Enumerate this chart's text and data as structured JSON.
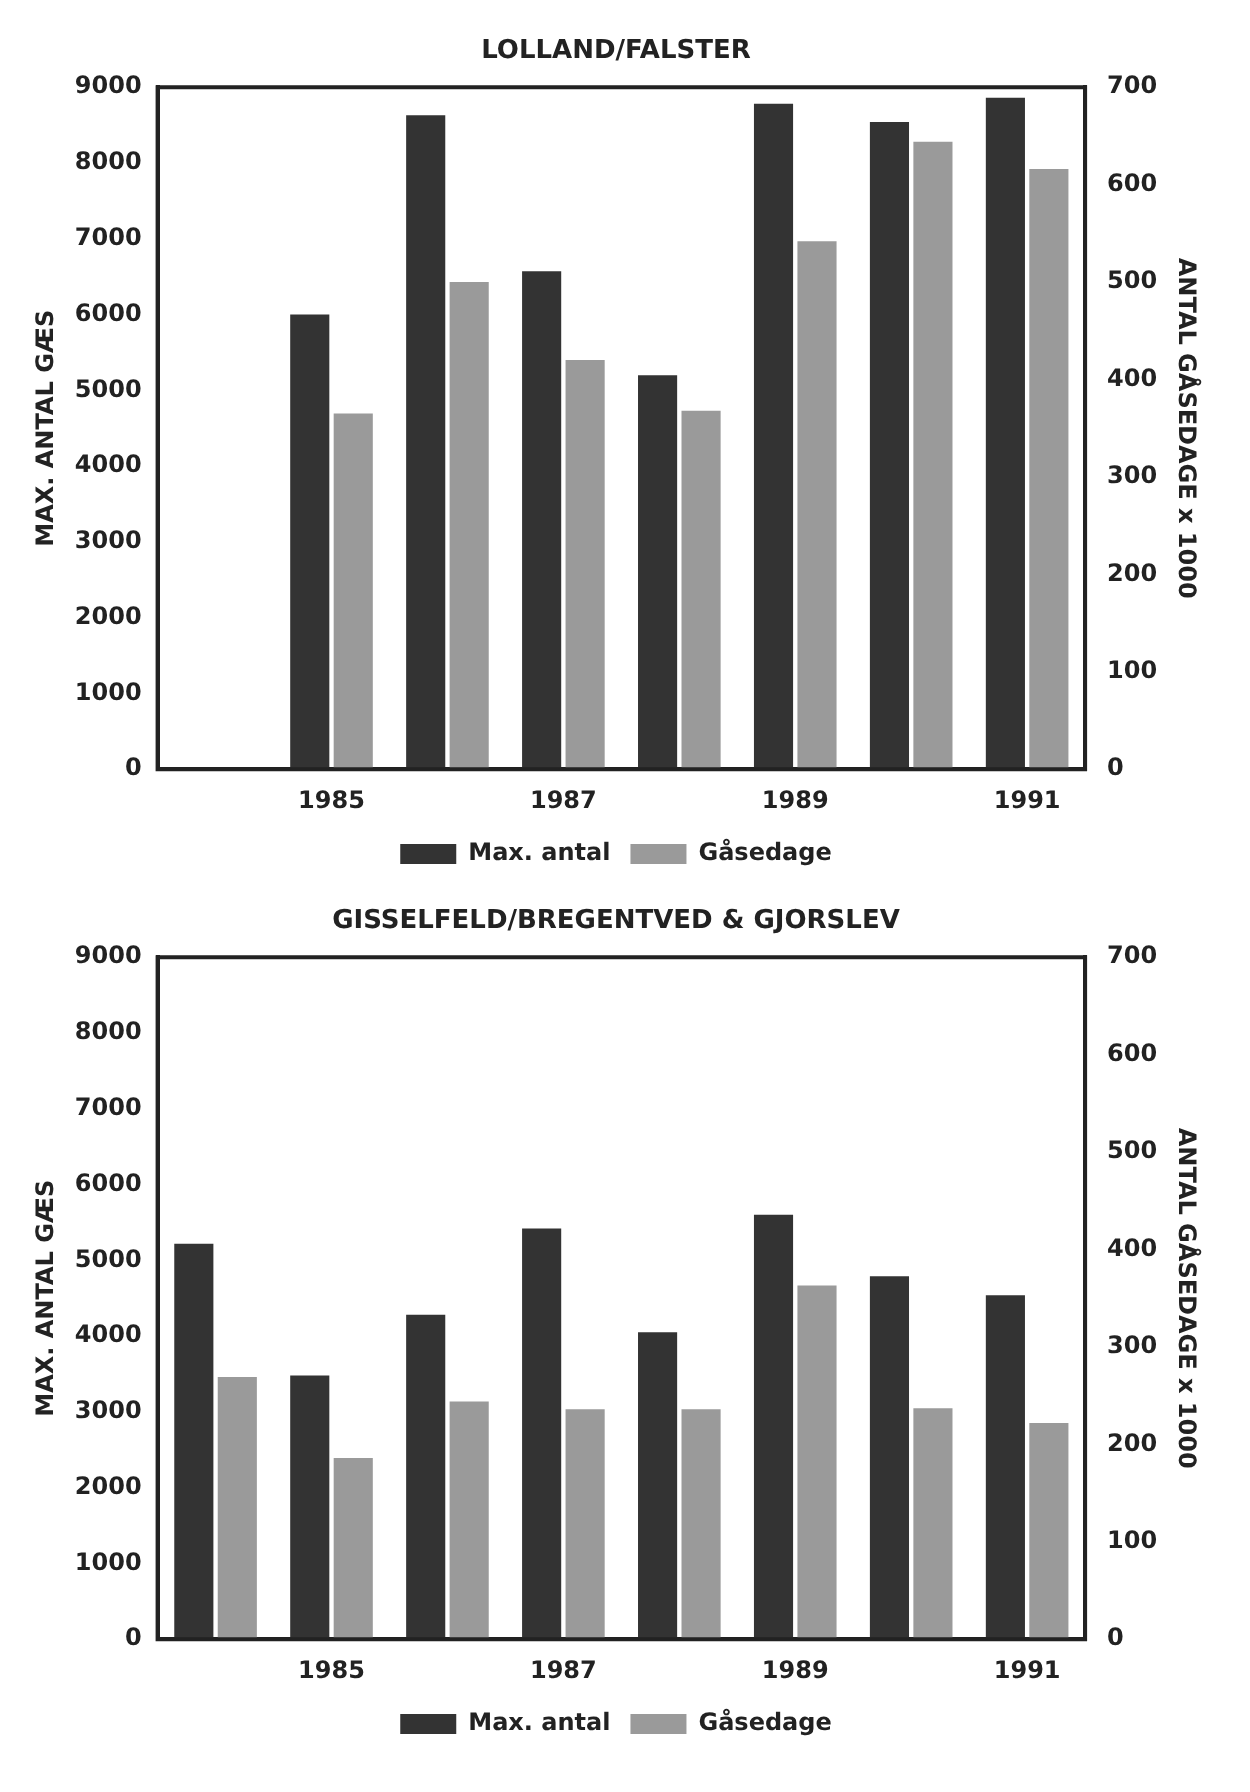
{
  "chart_data": [
    {
      "type": "bar",
      "title": "LOLLAND/FALSTER",
      "ylabel": "MAX. ANTAL GÆS",
      "y2label": "ANTAL GÅSEDAGE x 1000",
      "categories": [
        null,
        "1985",
        null,
        "1987",
        null,
        "1989",
        null,
        "1991"
      ],
      "series": [
        {
          "name": "Max. antal",
          "color": "#333333",
          "values": [
            null,
            6000,
            8630,
            6570,
            5200,
            8780,
            8540,
            8860
          ]
        },
        {
          "name": "Gåsedage",
          "color": "#9a9a9a",
          "axis": "y2",
          "values": [
            null,
            365,
            500,
            420,
            368,
            542,
            644,
            616
          ]
        }
      ],
      "ylim": [
        0,
        9000
      ],
      "yticks": [
        0,
        1000,
        2000,
        3000,
        4000,
        5000,
        6000,
        7000,
        8000,
        9000
      ],
      "y2lim": [
        0,
        700
      ],
      "y2ticks": [
        0,
        100,
        200,
        300,
        400,
        500,
        600,
        700
      ],
      "legend": "bottom",
      "grid": false
    },
    {
      "type": "bar",
      "title": "GISSELFELD/BREGENTVED & GJORSLEV",
      "ylabel": "MAX. ANTAL GÆS",
      "y2label": "ANTAL GÅSEDAGE x 1000",
      "categories": [
        null,
        "1985",
        null,
        "1987",
        null,
        "1989",
        null,
        "1991"
      ],
      "series": [
        {
          "name": "Max. antal",
          "color": "#333333",
          "values": [
            5220,
            3480,
            4280,
            5420,
            4050,
            5600,
            4790,
            4540
          ]
        },
        {
          "name": "Gåsedage",
          "color": "#9a9a9a",
          "axis": "y2",
          "values": [
            269,
            186,
            244,
            236,
            236,
            363,
            237,
            222
          ]
        }
      ],
      "ylim": [
        0,
        9000
      ],
      "yticks": [
        0,
        1000,
        2000,
        3000,
        4000,
        5000,
        6000,
        7000,
        8000,
        9000
      ],
      "y2lim": [
        0,
        700
      ],
      "y2ticks": [
        0,
        100,
        200,
        300,
        400,
        500,
        600,
        700
      ],
      "legend": "bottom",
      "grid": false
    }
  ]
}
